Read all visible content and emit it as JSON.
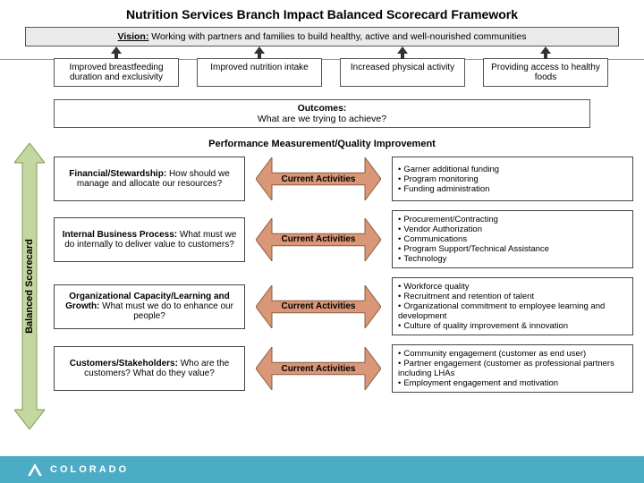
{
  "title": "Nutrition Services Branch Impact Balanced Scorecard Framework",
  "vision_label": "Vision:",
  "vision_text": "Working with partners and families to build healthy, active and well-nourished communities",
  "outcome_boxes": [
    "Improved breastfeeding duration and exclusivity",
    "Improved nutrition intake",
    "Increased physical activity",
    "Providing access to healthy foods"
  ],
  "outcomes_header_title": "Outcomes:",
  "outcomes_header_sub": "What are we trying to achieve?",
  "pmqi_label": "Performance Measurement/Quality Improvement",
  "perspectives": [
    {
      "title": "Financial/Stewardship:",
      "text": "How should we manage and allocate our resources?"
    },
    {
      "title": "Internal Business Process:",
      "text": "What must we do internally to deliver value to customers?"
    },
    {
      "title": "Organizational Capacity/Learning and Growth:",
      "text": "What must we do to enhance our people?"
    },
    {
      "title": "Customers/Stakeholders:",
      "text": "Who are the customers? What do they value?"
    }
  ],
  "current_activities_label": "Current Activities",
  "bullets": [
    [
      "Garner additional funding",
      "Program monitoring",
      "Funding administration"
    ],
    [
      "Procurement/Contracting",
      "Vendor Authorization",
      "Communications",
      "Program Support/Technical Assistance",
      "Technology"
    ],
    [
      "Workforce quality",
      "Recruitment and retention of talent",
      "Organizational commitment to employee learning and development",
      "Culture of quality improvement & innovation"
    ],
    [
      "Community engagement (customer as end user)",
      "Partner engagement (customer as professional partners including LHAs",
      "Employment engagement and motivation"
    ]
  ],
  "sidebar_label": "Balanced Scorecard",
  "footer_state": "COLORADO",
  "colors": {
    "arrow_fill": "#d99778",
    "arrow_stroke": "#8a5c44",
    "sidebar_fill": "#c4d7a0",
    "sidebar_stroke": "#7a9a51",
    "up_arrow": "#333333",
    "footer_bg": "#4cacc6"
  }
}
